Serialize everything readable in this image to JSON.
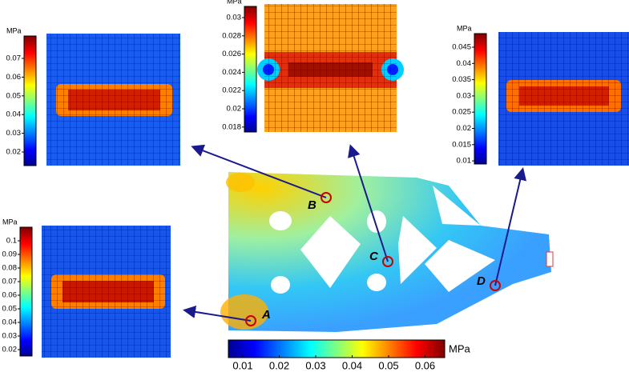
{
  "main_colorbar": {
    "unit": "MPa",
    "ticks": [
      "0.01",
      "0.02",
      "0.03",
      "0.04",
      "0.05",
      "0.06"
    ]
  },
  "insets": [
    {
      "unit": "MPa",
      "ticks": [
        "0.07",
        "0.06",
        "0.05",
        "0.04",
        "0.03",
        "0.02"
      ]
    },
    {
      "unit": "MPa",
      "ticks": [
        "0.03",
        "0.028",
        "0.026",
        "0.024",
        "0.022",
        "0.02",
        "0.018"
      ]
    },
    {
      "unit": "MPa",
      "ticks": [
        "0.045",
        "0.04",
        "0.035",
        "0.03",
        "0.025",
        "0.02",
        "0.015",
        "0.01"
      ]
    },
    {
      "unit": "MPa",
      "ticks": [
        "0.1",
        "0.09",
        "0.08",
        "0.07",
        "0.06",
        "0.05",
        "0.04",
        "0.03",
        "0.02"
      ]
    }
  ],
  "points": [
    {
      "label": "A"
    },
    {
      "label": "B"
    },
    {
      "label": "C"
    },
    {
      "label": "D"
    }
  ]
}
